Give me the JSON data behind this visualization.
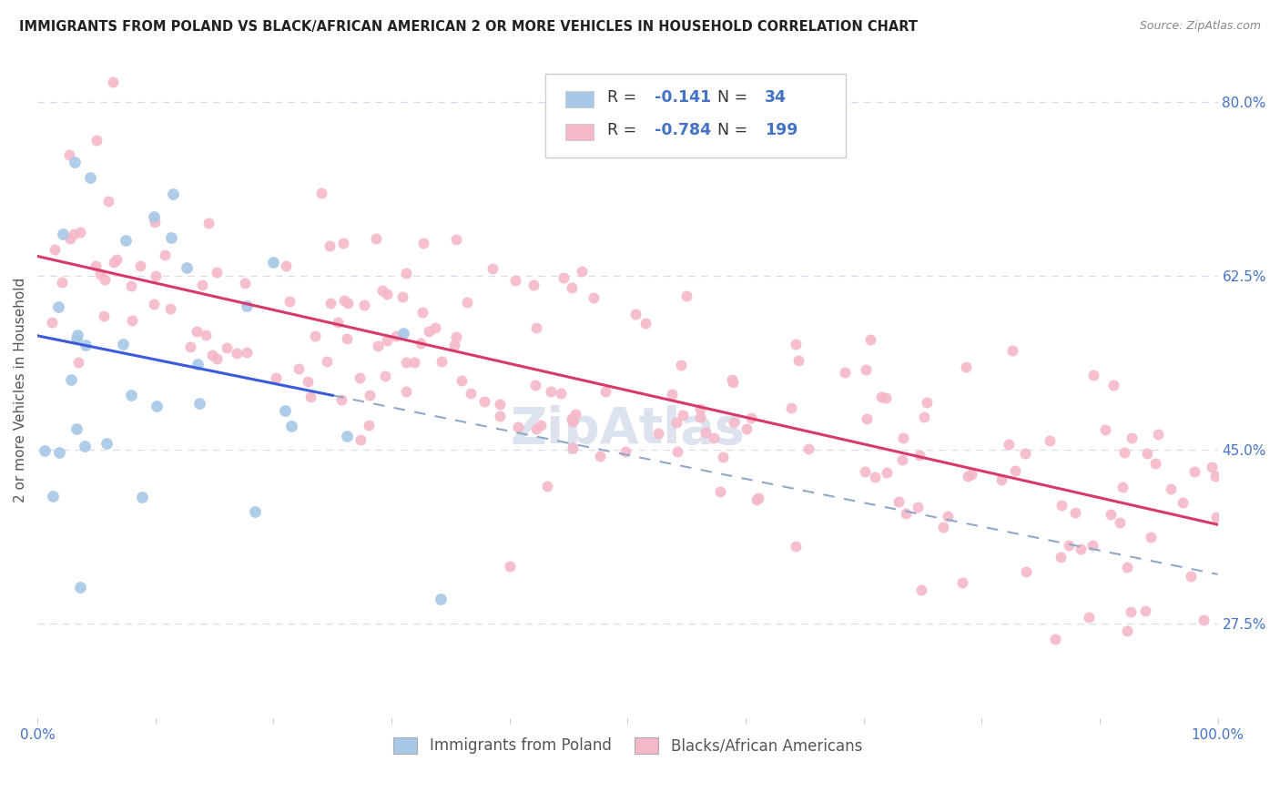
{
  "title": "IMMIGRANTS FROM POLAND VS BLACK/AFRICAN AMERICAN 2 OR MORE VEHICLES IN HOUSEHOLD CORRELATION CHART",
  "source": "Source: ZipAtlas.com",
  "ylabel": "2 or more Vehicles in Household",
  "xlim": [
    0.0,
    1.0
  ],
  "ylim": [
    0.18,
    0.84
  ],
  "xtick_positions": [
    0.0,
    0.1,
    0.2,
    0.3,
    0.4,
    0.5,
    0.6,
    0.7,
    0.8,
    0.9,
    1.0
  ],
  "xticklabels": [
    "0.0%",
    "",
    "",
    "",
    "",
    "",
    "",
    "",
    "",
    "",
    "100.0%"
  ],
  "ytick_right_positions": [
    0.275,
    0.45,
    0.625,
    0.8
  ],
  "yticklabels_right": [
    "27.5%",
    "45.0%",
    "62.5%",
    "80.0%"
  ],
  "poland_R": -0.141,
  "poland_N": 34,
  "black_R": -0.784,
  "black_N": 199,
  "poland_scatter_color": "#a8c8e8",
  "black_scatter_color": "#f4b8c8",
  "poland_line_color": "#3b5bdb",
  "black_line_color": "#d63a6a",
  "dashed_line_color": "#90a8c8",
  "grid_color": "#d8dce8",
  "title_color": "#222222",
  "source_color": "#888888",
  "axis_tick_color": "#4472c4",
  "ylabel_color": "#555555",
  "watermark_color": "#c0cce0",
  "background_color": "#ffffff",
  "legend_edge_color": "#cccccc",
  "legend_text_dark": "#333333",
  "legend_text_blue": "#4472c4",
  "bottom_legend_text_color": "#555555",
  "poland_line_start_x": 0.0,
  "poland_line_end_x": 0.25,
  "poland_line_start_y": 0.565,
  "poland_line_end_y": 0.505,
  "black_line_start_x": 0.0,
  "black_line_end_x": 1.0,
  "black_line_start_y": 0.645,
  "black_line_end_y": 0.375,
  "seed_poland": 99,
  "seed_black": 77
}
